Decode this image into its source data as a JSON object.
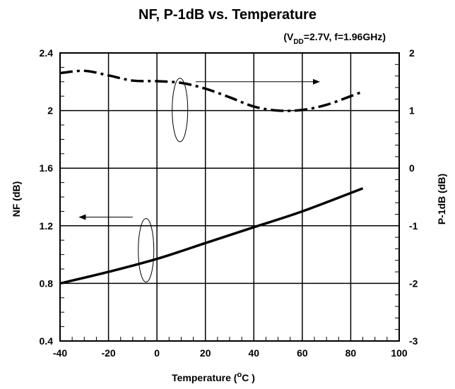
{
  "chart_data": {
    "type": "line",
    "title": "NF, P-1dB vs. Temperature",
    "condition": {
      "open": "(V",
      "sub": "DD",
      "rest": "=2.7V, f=1.96GHz)"
    },
    "xlabel": {
      "prefix": "Temperature (",
      "degree": "o",
      "unit": "C",
      "suffix": " )"
    },
    "ylabel_left": "NF (dB)",
    "ylabel_right": "P-1dB (dB)",
    "xlim": [
      -40,
      100
    ],
    "ylim_left": [
      0.4,
      2.4
    ],
    "ylim_right": [
      -3,
      2
    ],
    "x_ticks": [
      "-40",
      "-20",
      "0",
      "20",
      "40",
      "60",
      "80",
      "100"
    ],
    "y_left_ticks": [
      "0.4",
      "0.8",
      "1.2",
      "1.6",
      "2",
      "2.4"
    ],
    "y_right_ticks": [
      "-3",
      "-2",
      "-1",
      "0",
      "1",
      "2"
    ],
    "grid": true,
    "series": [
      {
        "axis": "left",
        "style": "solid",
        "x": [
          -40,
          -20,
          0,
          20,
          40,
          60,
          85
        ],
        "values": [
          0.8,
          0.88,
          0.97,
          1.08,
          1.19,
          1.3,
          1.46
        ]
      },
      {
        "axis": "right",
        "style": "dash-dot",
        "x": [
          -40,
          -30,
          -20,
          -10,
          0,
          10,
          20,
          30,
          40,
          50,
          60,
          70,
          80,
          85
        ],
        "values": [
          1.65,
          1.69,
          1.61,
          1.52,
          1.51,
          1.48,
          1.38,
          1.23,
          1.07,
          1.0,
          1.01,
          1.1,
          1.25,
          1.33
        ]
      }
    ]
  }
}
